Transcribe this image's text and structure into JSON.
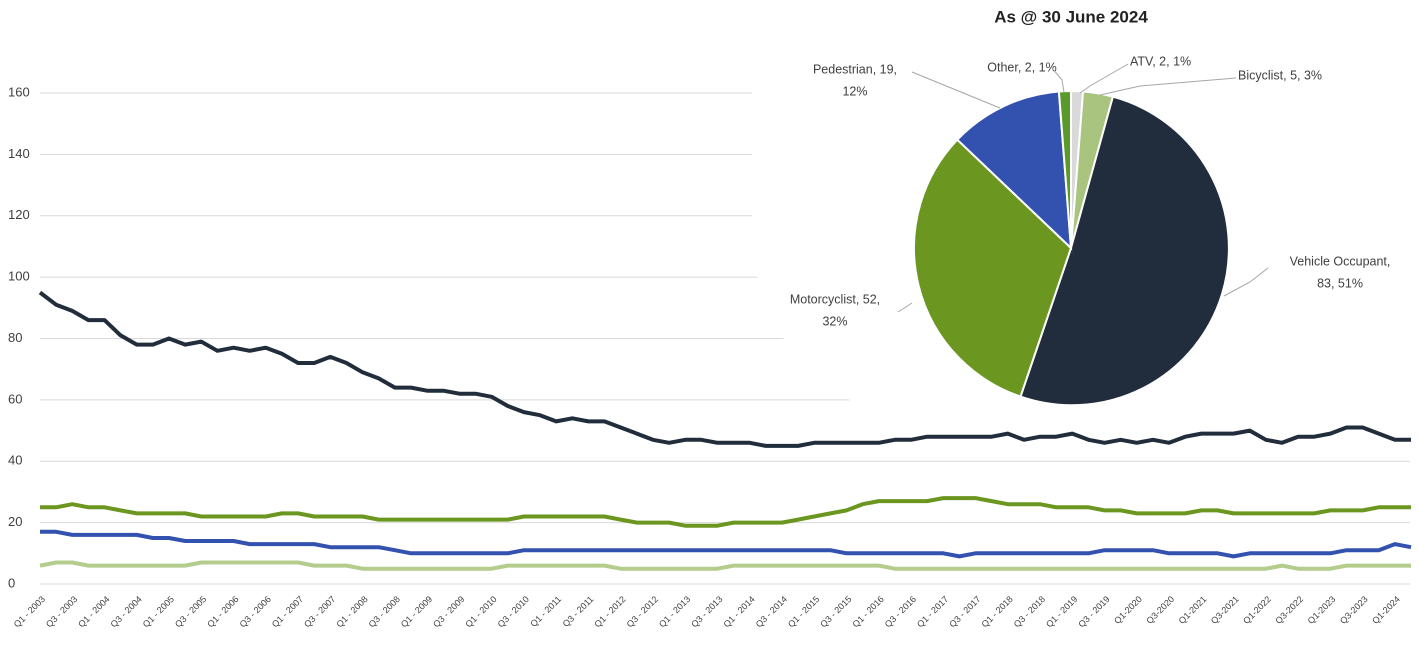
{
  "chart_data": [
    {
      "type": "line",
      "grid": true,
      "ylim": [
        0,
        160
      ],
      "yticks": [
        0,
        20,
        40,
        60,
        80,
        100,
        120,
        140,
        160
      ],
      "categories": [
        "Q1 - 2003",
        null,
        "Q3 - 2003",
        null,
        "Q1 - 2004",
        null,
        "Q3 - 2004",
        null,
        "Q1 - 2005",
        null,
        "Q3 - 2005",
        null,
        "Q1 - 2006",
        null,
        "Q3 - 2006",
        null,
        "Q1 - 2007",
        null,
        "Q3 - 2007",
        null,
        "Q1 - 2008",
        null,
        "Q3 - 2008",
        null,
        "Q1 - 2009",
        null,
        "Q3 - 2009",
        null,
        "Q1 - 2010",
        null,
        "Q3 - 2010",
        null,
        "Q1 - 2011",
        null,
        "Q3 - 2011",
        null,
        "Q1 - 2012",
        null,
        "Q3 - 2012",
        null,
        "Q1 - 2013",
        null,
        "Q3 - 2013",
        null,
        "Q1 - 2014",
        null,
        "Q3 - 2014",
        null,
        "Q1 - 2015",
        null,
        "Q3 - 2015",
        null,
        "Q1 - 2016",
        null,
        "Q3 - 2016",
        null,
        "Q1 - 2017",
        null,
        "Q3 - 2017",
        null,
        "Q1 - 2018",
        null,
        "Q3 - 2018",
        null,
        "Q1 - 2019",
        null,
        "Q3 - 2019",
        null,
        "Q1-2020",
        null,
        "Q3-2020",
        null,
        "Q1-2021",
        null,
        "Q3-2021",
        null,
        "Q1-2022",
        null,
        "Q3-2022",
        null,
        "Q1-2023",
        null,
        "Q3-2023",
        null,
        "Q1-2024",
        null
      ],
      "series": [
        {
          "color": "#222d3c",
          "values": [
            95,
            91,
            89,
            86,
            86,
            81,
            78,
            78,
            80,
            78,
            79,
            76,
            77,
            76,
            77,
            75,
            72,
            72,
            74,
            72,
            69,
            67,
            64,
            64,
            63,
            63,
            62,
            62,
            61,
            58,
            56,
            55,
            53,
            54,
            53,
            53,
            51,
            49,
            47,
            46,
            47,
            47,
            46,
            46,
            46,
            45,
            45,
            45,
            46,
            46,
            46,
            46,
            46,
            47,
            47,
            48,
            48,
            48,
            48,
            48,
            49,
            47,
            48,
            48,
            49,
            47,
            46,
            47,
            46,
            47,
            46,
            48,
            49,
            49,
            49,
            50,
            47,
            46,
            48,
            48,
            49,
            51,
            51,
            49,
            47,
            47
          ]
        },
        {
          "color": "#6b961f",
          "values": [
            25,
            25,
            26,
            25,
            25,
            24,
            23,
            23,
            23,
            23,
            22,
            22,
            22,
            22,
            22,
            23,
            23,
            22,
            22,
            22,
            22,
            21,
            21,
            21,
            21,
            21,
            21,
            21,
            21,
            21,
            22,
            22,
            22,
            22,
            22,
            22,
            21,
            20,
            20,
            20,
            19,
            19,
            19,
            20,
            20,
            20,
            20,
            21,
            22,
            23,
            24,
            26,
            27,
            27,
            27,
            27,
            28,
            28,
            28,
            27,
            26,
            26,
            26,
            25,
            25,
            25,
            24,
            24,
            23,
            23,
            23,
            23,
            24,
            24,
            23,
            23,
            23,
            23,
            23,
            23,
            24,
            24,
            24,
            25,
            25,
            25
          ]
        },
        {
          "color": "#3352b0",
          "values": [
            17,
            17,
            16,
            16,
            16,
            16,
            16,
            15,
            15,
            14,
            14,
            14,
            14,
            13,
            13,
            13,
            13,
            13,
            12,
            12,
            12,
            12,
            11,
            10,
            10,
            10,
            10,
            10,
            10,
            10,
            11,
            11,
            11,
            11,
            11,
            11,
            11,
            11,
            11,
            11,
            11,
            11,
            11,
            11,
            11,
            11,
            11,
            11,
            11,
            11,
            10,
            10,
            10,
            10,
            10,
            10,
            10,
            9,
            10,
            10,
            10,
            10,
            10,
            10,
            10,
            10,
            11,
            11,
            11,
            11,
            10,
            10,
            10,
            10,
            9,
            10,
            10,
            10,
            10,
            10,
            10,
            11,
            11,
            11,
            13,
            12
          ]
        },
        {
          "color": "#b4cc8c",
          "values": [
            6,
            7,
            7,
            6,
            6,
            6,
            6,
            6,
            6,
            6,
            7,
            7,
            7,
            7,
            7,
            7,
            7,
            6,
            6,
            6,
            5,
            5,
            5,
            5,
            5,
            5,
            5,
            5,
            5,
            6,
            6,
            6,
            6,
            6,
            6,
            6,
            5,
            5,
            5,
            5,
            5,
            5,
            5,
            6,
            6,
            6,
            6,
            6,
            6,
            6,
            6,
            6,
            6,
            5,
            5,
            5,
            5,
            5,
            5,
            5,
            5,
            5,
            5,
            5,
            5,
            5,
            5,
            5,
            5,
            5,
            5,
            5,
            5,
            5,
            5,
            5,
            5,
            6,
            5,
            5,
            5,
            6,
            6,
            6,
            6,
            6
          ]
        }
      ]
    },
    {
      "type": "pie",
      "title": "As @ 30 June 2024",
      "values": [
        2,
        5,
        83,
        52,
        19,
        2
      ],
      "colors": [
        "#d9d9d9",
        "#a9c47f",
        "#212d3d",
        "#6b961f",
        "#3352b0",
        "#5a9a2a"
      ],
      "labels": [
        [
          "ATV, 2, 1%"
        ],
        [
          "Bicyclist, 5, 3%"
        ],
        [
          "Vehicle Occupant,",
          "83, 51%"
        ],
        [
          "Motorcyclist, 52,",
          "32%"
        ],
        [
          "Pedestrian, 19,",
          "12%"
        ],
        [
          "Other, 2, 1%"
        ]
      ]
    }
  ]
}
